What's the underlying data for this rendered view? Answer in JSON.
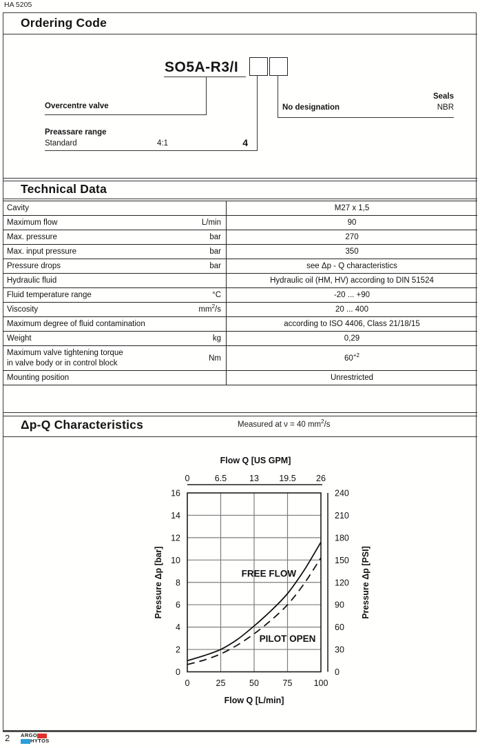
{
  "page": {
    "doc_code": "HA 5205",
    "page_number": "2",
    "logo": {
      "line1": "ARGO",
      "line2": "HYTOS",
      "red": "#e23128",
      "blue": "#2b9fd8"
    }
  },
  "ordering": {
    "title": "Ordering Code",
    "code": "SO5A-R3/I",
    "overcentre_label": "Overcentre valve",
    "pressure_range_label": "Preassare range",
    "pressure_range_name": "Standard",
    "pressure_range_ratio": "4:1",
    "pressure_range_digit": "4",
    "seals_label": "Seals",
    "no_designation_label": "No designation",
    "seal_material": "NBR"
  },
  "technical": {
    "title": "Technical Data",
    "rows": [
      {
        "label": [
          "Cavity"
        ],
        "unit": "",
        "value": "M27 x 1,5"
      },
      {
        "label": [
          "Maximum flow"
        ],
        "unit": "L/min",
        "value": "90"
      },
      {
        "label": [
          "Max. pressure"
        ],
        "unit": "bar",
        "value": "270"
      },
      {
        "label": [
          "Max. input pressure"
        ],
        "unit": "bar",
        "value": "350"
      },
      {
        "label": [
          "Pressure drops"
        ],
        "unit": "bar",
        "value": "see Δp - Q  characteristics"
      },
      {
        "label": [
          "Hydraulic fluid"
        ],
        "unit": "",
        "value": "Hydraulic oil (HM, HV) according to DIN 51524"
      },
      {
        "label": [
          "Fluid temperature range"
        ],
        "unit": "°C",
        "value": "-20 ... +90"
      },
      {
        "label": [
          "Viscosity"
        ],
        "unit": "mm",
        "unit_sup": "2",
        "unit_suffix": "/s",
        "value": "20 ... 400"
      },
      {
        "label": [
          "Maximum degree of fluid contamination"
        ],
        "unit": "",
        "value": "according to ISO 4406, Class 21/18/15"
      },
      {
        "label": [
          "Weight"
        ],
        "unit": "kg",
        "value": "0,29"
      },
      {
        "label": [
          "Maximum valve tightening torque",
          "in valve body or in control block"
        ],
        "unit": "Nm",
        "value": "60",
        "value_sup": "+2"
      },
      {
        "label": [
          "Mounting position"
        ],
        "unit": "",
        "value": "Unrestricted"
      }
    ]
  },
  "characteristics": {
    "title": "Δp-Q Characteristics",
    "measured_prefix": "Measured at ν = 40 mm",
    "measured_sup": "2",
    "measured_suffix": "/s"
  },
  "chart_data": {
    "type": "line",
    "title": "",
    "grid": true,
    "top_axis": {
      "label": "Flow Q [US GPM]",
      "ticks": [
        "0",
        "6.5",
        "13",
        "19.5",
        "26"
      ],
      "max": 26
    },
    "bottom_axis": {
      "label": "Flow Q [L/min]",
      "ticks": [
        0,
        25,
        50,
        75,
        100
      ],
      "range": [
        0,
        100
      ]
    },
    "left_axis": {
      "label": "Pressure Δp [bar]",
      "ticks": [
        0,
        2,
        4,
        6,
        8,
        10,
        12,
        14,
        16
      ],
      "range": [
        0,
        16
      ]
    },
    "right_axis": {
      "label": "Pressure Δp [PSI]",
      "ticks": [
        0,
        30,
        60,
        90,
        120,
        150,
        180,
        210,
        240
      ],
      "range": [
        0,
        240
      ]
    },
    "series": [
      {
        "name": "FREE FLOW",
        "line": "solid",
        "x": [
          0,
          12.5,
          25,
          37.5,
          50,
          62.5,
          75,
          87.5,
          100
        ],
        "y": [
          1.0,
          1.45,
          2.0,
          2.9,
          4.1,
          5.45,
          7.0,
          9.1,
          11.6
        ],
        "label_at": {
          "x": 61,
          "y": 8.8
        }
      },
      {
        "name": "PILOT OPEN",
        "line": "dashed",
        "x": [
          0,
          12.5,
          25,
          37.5,
          50,
          62.5,
          75,
          87.5,
          100
        ],
        "y": [
          0.65,
          1.05,
          1.6,
          2.4,
          3.4,
          4.6,
          6.0,
          7.9,
          10.2
        ],
        "label_at": {
          "x": 75,
          "y": 2.95
        }
      }
    ]
  }
}
